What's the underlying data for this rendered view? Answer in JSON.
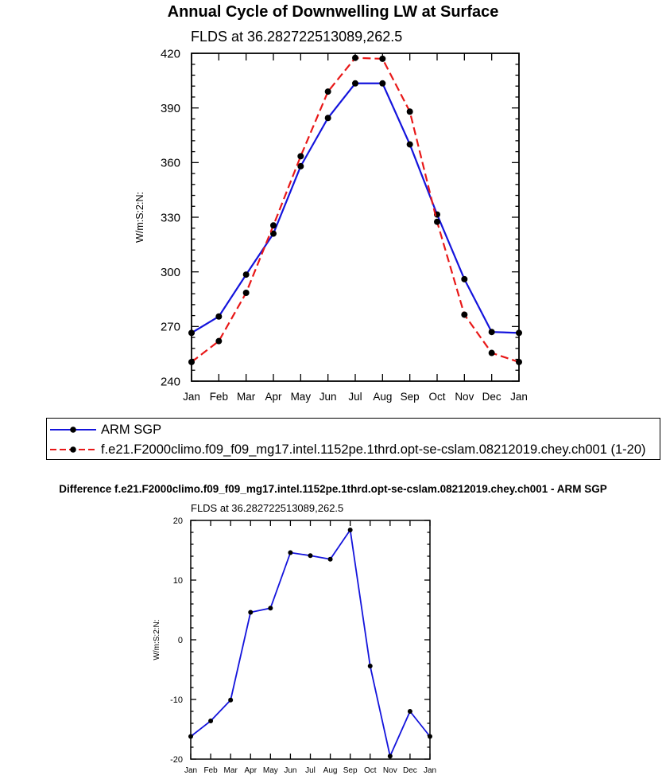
{
  "chart_data": [
    {
      "type": "line",
      "title": "Annual Cycle of Downwelling LW at Surface",
      "subtitle": "FLDS at 36.282722513089,262.5",
      "xlabel": "",
      "ylabel": "W/m:S:2:N:",
      "ylim": [
        240,
        420
      ],
      "yticks": [
        240,
        270,
        300,
        330,
        360,
        390,
        420
      ],
      "categories": [
        "Jan",
        "Feb",
        "Mar",
        "Apr",
        "May",
        "Jun",
        "Jul",
        "Aug",
        "Sep",
        "Oct",
        "Nov",
        "Dec",
        "Jan"
      ],
      "series": [
        {
          "name": "ARM SGP",
          "color": "#1414dc",
          "dash": "solid",
          "values": [
            266.5,
            275.5,
            298.5,
            321,
            358,
            384.5,
            403.5,
            403.5,
            370,
            331.5,
            296,
            267,
            266.5
          ]
        },
        {
          "name": "f.e21.F2000climo.f09_f09_mg17.intel.1152pe.1thrd.opt-se-cslam.08212019.chey.ch001 (1-20)",
          "color": "#e81818",
          "dash": "dashed",
          "values": [
            250.5,
            262,
            288.5,
            325.5,
            363.5,
            399,
            417.5,
            417,
            388,
            327.5,
            276.5,
            255.5,
            250.5
          ]
        }
      ]
    },
    {
      "type": "line",
      "title": "Difference f.e21.F2000climo.f09_f09_mg17.intel.1152pe.1thrd.opt-se-cslam.08212019.chey.ch001 - ARM SGP",
      "subtitle": "FLDS at 36.282722513089,262.5",
      "xlabel": "",
      "ylabel": "W/m:S:2:N:",
      "ylim": [
        -20,
        20
      ],
      "yticks": [
        -20,
        -10,
        0,
        10,
        20
      ],
      "categories": [
        "Jan",
        "Feb",
        "Mar",
        "Apr",
        "May",
        "Jun",
        "Jul",
        "Aug",
        "Sep",
        "Oct",
        "Nov",
        "Dec",
        "Jan"
      ],
      "series": [
        {
          "name": "Difference",
          "color": "#1414dc",
          "dash": "solid",
          "values": [
            -16.2,
            -13.6,
            -10.1,
            4.6,
            5.3,
            14.6,
            14.1,
            13.5,
            18.4,
            -4.4,
            -19.5,
            -12,
            -16.2
          ]
        }
      ]
    }
  ]
}
